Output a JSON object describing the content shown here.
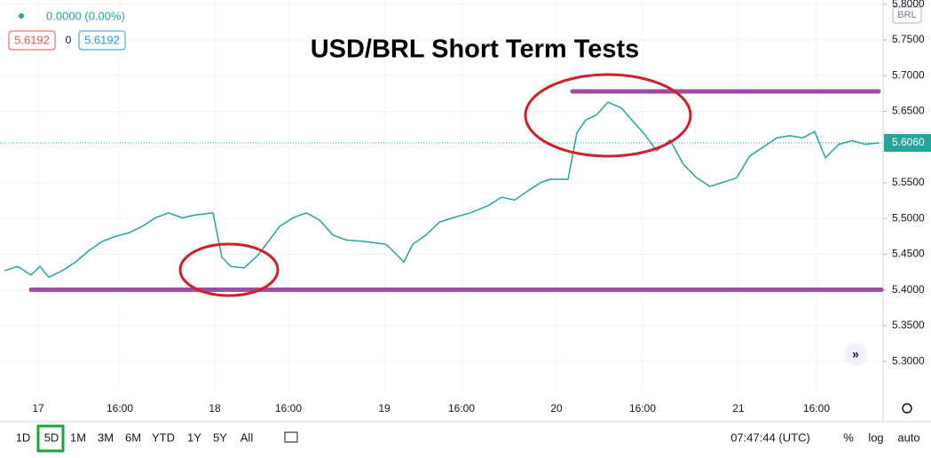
{
  "chart_data": {
    "type": "line",
    "title": "USD/BRL Short Term Tests",
    "series": [
      {
        "name": "USD/BRL",
        "color": "#26a69a",
        "x": [
          0.5,
          2,
          3.5,
          4.5,
          5.5,
          7,
          8.5,
          10,
          11.5,
          13,
          14.5,
          16,
          17.5,
          19,
          20.5,
          22,
          24,
          25,
          26,
          27.5,
          29,
          30,
          31.5,
          33,
          34.5,
          36,
          37.5,
          39,
          41,
          43.5,
          44.5,
          45.5,
          46.5,
          48,
          49.5,
          51,
          53,
          55,
          56.5,
          58,
          59.5,
          61,
          62,
          64,
          65,
          66,
          67.2,
          68.5,
          70,
          71.2,
          72.5,
          74,
          75.5,
          77,
          78.5,
          80,
          81.5,
          83,
          84.5,
          86,
          87.5,
          89,
          90.5,
          91.8,
          93,
          94.5,
          96,
          97.5,
          99
        ],
        "values": [
          5.427,
          5.433,
          5.421,
          5.433,
          5.418,
          5.427,
          5.439,
          5.455,
          5.468,
          5.475,
          5.48,
          5.489,
          5.501,
          5.508,
          5.501,
          5.505,
          5.508,
          5.446,
          5.433,
          5.431,
          5.448,
          5.464,
          5.489,
          5.501,
          5.508,
          5.498,
          5.477,
          5.47,
          5.468,
          5.464,
          5.452,
          5.439,
          5.464,
          5.477,
          5.495,
          5.501,
          5.508,
          5.518,
          5.53,
          5.526,
          5.539,
          5.551,
          5.555,
          5.555,
          5.62,
          5.638,
          5.645,
          5.663,
          5.655,
          5.638,
          5.62,
          5.595,
          5.61,
          5.576,
          5.557,
          5.545,
          5.551,
          5.557,
          5.588,
          5.6,
          5.613,
          5.616,
          5.613,
          5.622,
          5.585,
          5.604,
          5.609,
          5.604,
          5.606
        ]
      }
    ],
    "levels": [
      {
        "value": 5.678,
        "x": [
          64.5,
          99
        ],
        "color": "#9c4ea0"
      },
      {
        "value": 5.4005,
        "x": [
          3.5,
          99.3
        ],
        "color": "#9c4ea0"
      }
    ],
    "last_price": {
      "value": 5.606,
      "label": "5.6060",
      "color": "#26a69a"
    },
    "xlim": [
      0,
      99.5
    ],
    "ylim": [
      5.2593,
      5.806
    ],
    "xticks": [
      {
        "value": 4.3,
        "label": "17"
      },
      {
        "value": 13.5,
        "label": "16:00"
      },
      {
        "value": 24.2,
        "label": "18"
      },
      {
        "value": 32.5,
        "label": "16:00"
      },
      {
        "value": 43.3,
        "label": "19"
      },
      {
        "value": 52,
        "label": "16:00"
      },
      {
        "value": 62.7,
        "label": "20"
      },
      {
        "value": 72.4,
        "label": "16:00"
      },
      {
        "value": 83.2,
        "label": "21"
      },
      {
        "value": 92,
        "label": "16:00"
      }
    ],
    "yticks": [
      {
        "value": 5.3,
        "label": "5.3000"
      },
      {
        "value": 5.35,
        "label": "5.3500"
      },
      {
        "value": 5.4,
        "label": "5.4000"
      },
      {
        "value": 5.45,
        "label": "5.4500"
      },
      {
        "value": 5.5,
        "label": "5.5000"
      },
      {
        "value": 5.55,
        "label": "5.5500"
      },
      {
        "value": 5.6,
        "label": "5.6000"
      },
      {
        "value": 5.65,
        "label": "5.6500"
      },
      {
        "value": 5.7,
        "label": "5.7000"
      },
      {
        "value": 5.75,
        "label": "5.7500"
      },
      {
        "value": 5.8,
        "label": "5.8000"
      }
    ],
    "grid": true
  },
  "ui": {
    "change": "0.0000 (0.00%)",
    "bid": "5.6192",
    "spread": "0",
    "ask": "5.6192",
    "currency": "BRL",
    "ranges": [
      "1D",
      "5D",
      "1M",
      "3M",
      "6M",
      "YTD",
      "1Y",
      "5Y",
      "All"
    ],
    "clock": "07:47:44 (UTC)",
    "percent": "%",
    "log": "log",
    "auto": "auto"
  }
}
